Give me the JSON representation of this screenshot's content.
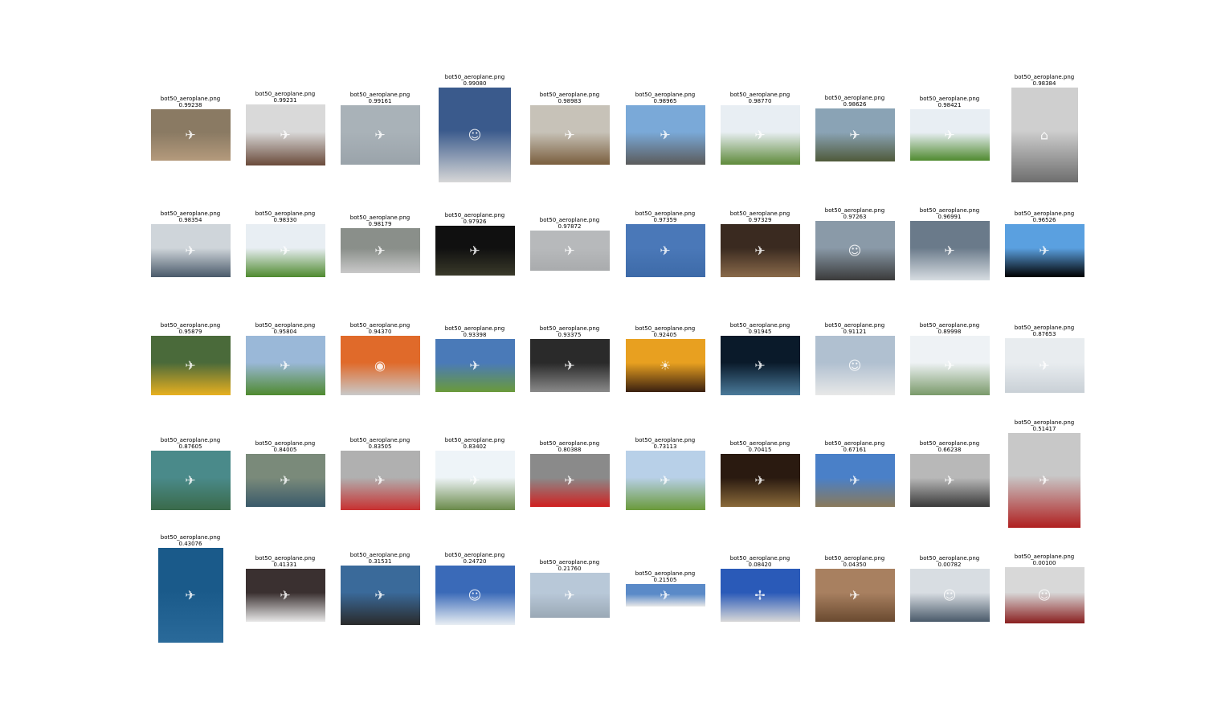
{
  "images": [
    {
      "label": "bot50_aeroplane.png",
      "score": "0.99238",
      "c1": "#8a7a63",
      "c2": "#b49a7c",
      "icon": "airplane-icon"
    },
    {
      "label": "bot50_aeroplane.png",
      "score": "0.99231",
      "c1": "#d9d9d9",
      "c2": "#6a4a3a",
      "icon": "airplane-icon"
    },
    {
      "label": "bot50_aeroplane.png",
      "score": "0.99161",
      "c1": "#a9b2b8",
      "c2": "#9aa3aa",
      "icon": "airplane-icon"
    },
    {
      "label": "bot50_aeroplane.png",
      "score": "0.99080",
      "c1": "#3a5a8c",
      "c2": "#d7d7d7",
      "icon": "person-icon"
    },
    {
      "label": "bot50_aeroplane.png",
      "score": "0.98983",
      "c1": "#c7c2b8",
      "c2": "#7a5e3d",
      "icon": "airplane-icon"
    },
    {
      "label": "bot50_aeroplane.png",
      "score": "0.98965",
      "c1": "#7aa9d8",
      "c2": "#5b5b5b",
      "icon": "airplane-icon"
    },
    {
      "label": "bot50_aeroplane.png",
      "score": "0.98770",
      "c1": "#e8eef3",
      "c2": "#5e8a3a",
      "icon": "airplane-icon"
    },
    {
      "label": "bot50_aeroplane.png",
      "score": "0.98626",
      "c1": "#8aa3b5",
      "c2": "#4f5a3a",
      "icon": "airplane-icon"
    },
    {
      "label": "bot50_aeroplane.png",
      "score": "0.98421",
      "c1": "#e8eef3",
      "c2": "#4f8a2f",
      "icon": "airplane-icon"
    },
    {
      "label": "bot50_aeroplane.png",
      "score": "0.98384",
      "c1": "#cfcfcf",
      "c2": "#6e6e6e",
      "icon": "hangar-icon"
    },
    {
      "label": "bot50_aeroplane.png",
      "score": "0.98354",
      "c1": "#cfd5da",
      "c2": "#4a5a6a",
      "icon": "airplane-icon"
    },
    {
      "label": "bot50_aeroplane.png",
      "score": "0.98330",
      "c1": "#e8eef3",
      "c2": "#4f8a2f",
      "icon": "airplane-icon"
    },
    {
      "label": "bot50_aeroplane.png",
      "score": "0.98179",
      "c1": "#8a8f8a",
      "c2": "#c9c9c9",
      "icon": "airplane-icon"
    },
    {
      "label": "bot50_aeroplane.png",
      "score": "0.97926",
      "c1": "#101010",
      "c2": "#3a3a2a",
      "icon": "airplane-icon"
    },
    {
      "label": "bot50_aeroplane.png",
      "score": "0.97872",
      "c1": "#b7b9bb",
      "c2": "#a9abad",
      "icon": "airplane-icon"
    },
    {
      "label": "bot50_aeroplane.png",
      "score": "0.97359",
      "c1": "#4a78b8",
      "c2": "#3d6aa8",
      "icon": "airplane-icon"
    },
    {
      "label": "bot50_aeroplane.png",
      "score": "0.97329",
      "c1": "#3a2a20",
      "c2": "#8a6a4a",
      "icon": "airplane-icon"
    },
    {
      "label": "bot50_aeroplane.png",
      "score": "0.97263",
      "c1": "#8a9aa8",
      "c2": "#3a3a3a",
      "icon": "person-icon"
    },
    {
      "label": "bot50_aeroplane.png",
      "score": "0.96991",
      "c1": "#6a7a8a",
      "c2": "#d7dde2",
      "icon": "airplane-icon"
    },
    {
      "label": "bot50_aeroplane.png",
      "score": "0.96526",
      "c1": "#5aa0e0",
      "c2": "#000000",
      "icon": "airplane-icon"
    },
    {
      "label": "bot50_aeroplane.png",
      "score": "0.95879",
      "c1": "#4a6a3a",
      "c2": "#e8b020",
      "icon": "airplane-icon"
    },
    {
      "label": "bot50_aeroplane.png",
      "score": "0.95804",
      "c1": "#9ab8d8",
      "c2": "#4f8a2f",
      "icon": "airplane-icon"
    },
    {
      "label": "bot50_aeroplane.png",
      "score": "0.94370",
      "c1": "#e06a2a",
      "c2": "#c9c9c9",
      "icon": "engine-icon"
    },
    {
      "label": "bot50_aeroplane.png",
      "score": "0.93398",
      "c1": "#4a7ab8",
      "c2": "#6a9a3a",
      "icon": "airplane-icon"
    },
    {
      "label": "bot50_aeroplane.png",
      "score": "0.93375",
      "c1": "#2a2a2a",
      "c2": "#8a8a8a",
      "icon": "airplane-icon"
    },
    {
      "label": "bot50_aeroplane.png",
      "score": "0.92405",
      "c1": "#e8a020",
      "c2": "#3a2010",
      "icon": "sunset-icon"
    },
    {
      "label": "bot50_aeroplane.png",
      "score": "0.91945",
      "c1": "#0a1a2a",
      "c2": "#4a7a9a",
      "icon": "airplane-icon"
    },
    {
      "label": "bot50_aeroplane.png",
      "score": "0.91121",
      "c1": "#b0c0d0",
      "c2": "#e8e8e8",
      "icon": "person-icon"
    },
    {
      "label": "bot50_aeroplane.png",
      "score": "0.89998",
      "c1": "#eef2f5",
      "c2": "#7a9a6a",
      "icon": "airplane-icon"
    },
    {
      "label": "bot50_aeroplane.png",
      "score": "0.87653",
      "c1": "#e8ecef",
      "c2": "#c9d0d6",
      "icon": "airplane-icon"
    },
    {
      "label": "bot50_aeroplane.png",
      "score": "0.87605",
      "c1": "#4a8a8a",
      "c2": "#3a6a4a",
      "icon": "airplane-icon"
    },
    {
      "label": "bot50_aeroplane.png",
      "score": "0.84005",
      "c1": "#7a8a7a",
      "c2": "#3a5a6a",
      "icon": "airplane-icon"
    },
    {
      "label": "bot50_aeroplane.png",
      "score": "0.83505",
      "c1": "#b0b0b0",
      "c2": "#c83030",
      "icon": "airplane-icon"
    },
    {
      "label": "bot50_aeroplane.png",
      "score": "0.83402",
      "c1": "#eef4f8",
      "c2": "#6a8a4a",
      "icon": "airplane-icon"
    },
    {
      "label": "bot50_aeroplane.png",
      "score": "0.80388",
      "c1": "#8a8a8a",
      "c2": "#d02020",
      "icon": "airplane-icon"
    },
    {
      "label": "bot50_aeroplane.png",
      "score": "0.73113",
      "c1": "#b8d0e8",
      "c2": "#6a9a3a",
      "icon": "airplane-icon"
    },
    {
      "label": "bot50_aeroplane.png",
      "score": "0.70415",
      "c1": "#2a1a10",
      "c2": "#8a6a3a",
      "icon": "airplane-icon"
    },
    {
      "label": "bot50_aeroplane.png",
      "score": "0.67161",
      "c1": "#4a80c8",
      "c2": "#8a7a5a",
      "icon": "airplane-icon"
    },
    {
      "label": "bot50_aeroplane.png",
      "score": "0.66238",
      "c1": "#b8b8b8",
      "c2": "#3a3a3a",
      "icon": "airplane-icon"
    },
    {
      "label": "bot50_aeroplane.png",
      "score": "0.51417",
      "c1": "#c8c8c8",
      "c2": "#b02020",
      "icon": "airplane-icon"
    },
    {
      "label": "bot50_aeroplane.png",
      "score": "0.43076",
      "c1": "#1a5a8a",
      "c2": "#2a6a9a",
      "icon": "airplane-icon"
    },
    {
      "label": "bot50_aeroplane.png",
      "score": "0.41331",
      "c1": "#3a3030",
      "c2": "#e8e8e8",
      "icon": "airplane-icon"
    },
    {
      "label": "bot50_aeroplane.png",
      "score": "0.31531",
      "c1": "#3a6a9a",
      "c2": "#2a2a2a",
      "icon": "airplane-icon"
    },
    {
      "label": "bot50_aeroplane.png",
      "score": "0.24720",
      "c1": "#3a6ab8",
      "c2": "#e8eef3",
      "icon": "person-icon"
    },
    {
      "label": "bot50_aeroplane.png",
      "score": "0.21760",
      "c1": "#b8c8d8",
      "c2": "#9aa8b5",
      "icon": "airplane-icon"
    },
    {
      "label": "bot50_aeroplane.png",
      "score": "0.21505",
      "c1": "#5a8ac8",
      "c2": "#e8e8e8",
      "icon": "airplane-icon"
    },
    {
      "label": "bot50_aeroplane.png",
      "score": "0.08420",
      "c1": "#2a5ab8",
      "c2": "#d8d8d8",
      "icon": "propeller-icon"
    },
    {
      "label": "bot50_aeroplane.png",
      "score": "0.04350",
      "c1": "#a88060",
      "c2": "#6a4a30",
      "icon": "airplane-icon"
    },
    {
      "label": "bot50_aeroplane.png",
      "score": "0.00782",
      "c1": "#d8dde2",
      "c2": "#4a5a6a",
      "icon": "person-icon"
    },
    {
      "label": "bot50_aeroplane.png",
      "score": "0.00100",
      "c1": "#d8d8d8",
      "c2": "#8a2020",
      "icon": "person-icon"
    }
  ]
}
